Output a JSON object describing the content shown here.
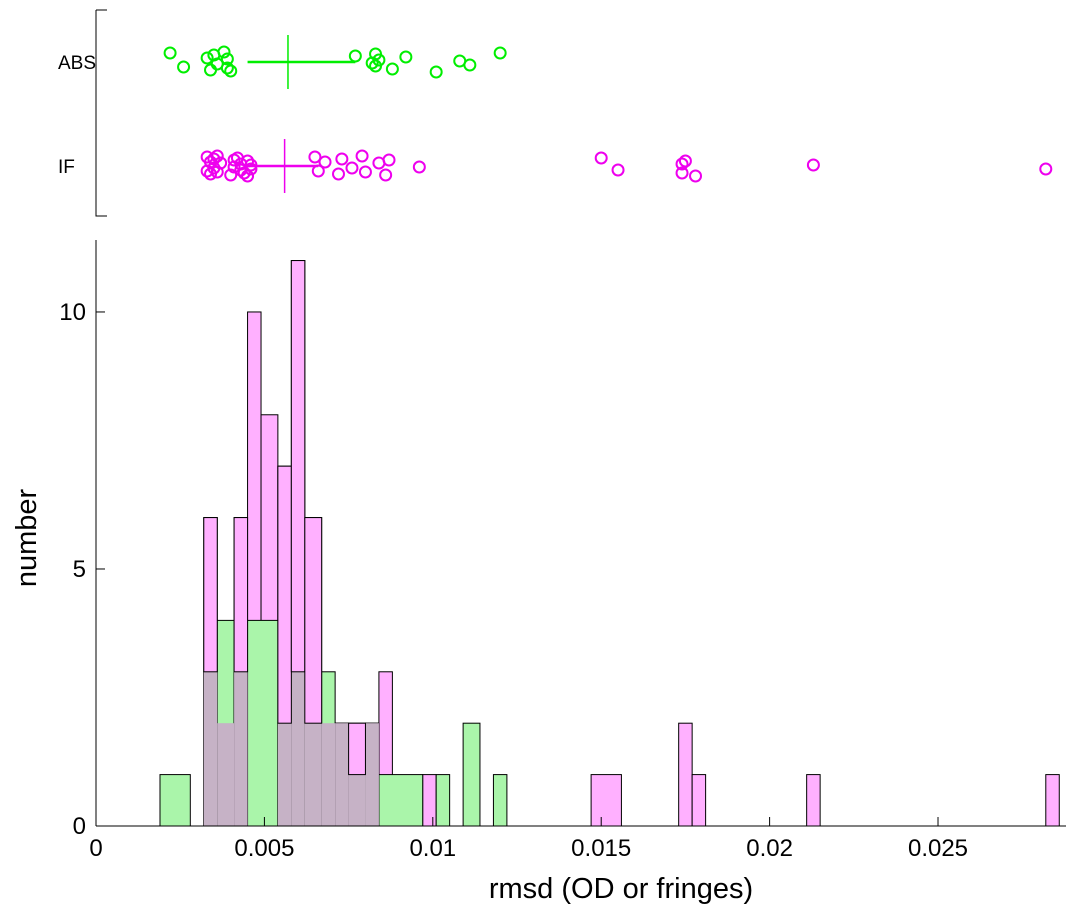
{
  "chart_data": [
    {
      "type": "scatter",
      "title": "",
      "categories": [
        "ABS",
        "IF"
      ],
      "xlim": [
        0,
        0.0288
      ],
      "series": [
        {
          "name": "ABS",
          "color": "#00ee00",
          "marker": "open-circle",
          "mean": 0.0057,
          "summary_range": [
            0.0045,
            0.0077
          ],
          "values": [
            0.0022,
            0.0026,
            0.0033,
            0.0034,
            0.0035,
            0.0036,
            0.0038,
            0.0039,
            0.0039,
            0.004,
            0.0077,
            0.0082,
            0.0083,
            0.0083,
            0.0084,
            0.0088,
            0.0092,
            0.0101,
            0.0108,
            0.0111,
            0.012
          ]
        },
        {
          "name": "IF",
          "color": "#ee00ee",
          "marker": "open-circle",
          "mean": 0.0056,
          "summary_range": [
            0.0045,
            0.0066
          ],
          "values": [
            0.0033,
            0.0033,
            0.0034,
            0.0034,
            0.0035,
            0.0035,
            0.0036,
            0.0036,
            0.0037,
            0.004,
            0.0041,
            0.0041,
            0.0042,
            0.0043,
            0.0043,
            0.0044,
            0.0045,
            0.0045,
            0.0046,
            0.0046,
            0.0065,
            0.0066,
            0.0068,
            0.0072,
            0.0073,
            0.0076,
            0.0079,
            0.008,
            0.0084,
            0.0086,
            0.0087,
            0.0096,
            0.015,
            0.0155,
            0.0174,
            0.0174,
            0.0175,
            0.0178,
            0.0213,
            0.0282
          ]
        }
      ]
    },
    {
      "type": "histogram",
      "title": "",
      "xlabel": "rmsd (OD or fringes)",
      "ylabel": "number",
      "xlim": [
        0,
        0.0288
      ],
      "ylim": [
        0,
        11.4
      ],
      "xticks": [
        "0",
        "0.005",
        "0.01",
        "0.015",
        "0.02",
        "0.025"
      ],
      "yticks": [
        "0",
        "5",
        "10"
      ],
      "series": [
        {
          "name": "ABS",
          "color": "#aaf5aa",
          "bins": [
            {
              "x0": 0.0019,
              "x1": 0.0028,
              "count": 1
            },
            {
              "x0": 0.0032,
              "x1": 0.0036,
              "count": 3
            },
            {
              "x0": 0.0036,
              "x1": 0.0041,
              "count": 4
            },
            {
              "x0": 0.0041,
              "x1": 0.0045,
              "count": 3
            },
            {
              "x0": 0.0045,
              "x1": 0.0054,
              "count": 4
            },
            {
              "x0": 0.0054,
              "x1": 0.0058,
              "count": 2
            },
            {
              "x0": 0.0058,
              "x1": 0.0062,
              "count": 3
            },
            {
              "x0": 0.0062,
              "x1": 0.0067,
              "count": 2
            },
            {
              "x0": 0.0067,
              "x1": 0.0071,
              "count": 3
            },
            {
              "x0": 0.0071,
              "x1": 0.0075,
              "count": 2
            },
            {
              "x0": 0.0075,
              "x1": 0.008,
              "count": 1
            },
            {
              "x0": 0.008,
              "x1": 0.0084,
              "count": 2
            },
            {
              "x0": 0.0084,
              "x1": 0.0097,
              "count": 1
            },
            {
              "x0": 0.0097,
              "x1": 0.0101,
              "count": 0
            },
            {
              "x0": 0.0101,
              "x1": 0.0105,
              "count": 1
            },
            {
              "x0": 0.0109,
              "x1": 0.0114,
              "count": 2
            },
            {
              "x0": 0.0118,
              "x1": 0.0122,
              "count": 1
            }
          ]
        },
        {
          "name": "IF",
          "color": "#ffb0ff",
          "bins": [
            {
              "x0": 0.0032,
              "x1": 0.0036,
              "count": 6
            },
            {
              "x0": 0.0036,
              "x1": 0.0041,
              "count": 2
            },
            {
              "x0": 0.0041,
              "x1": 0.0045,
              "count": 6
            },
            {
              "x0": 0.0045,
              "x1": 0.0049,
              "count": 10
            },
            {
              "x0": 0.0049,
              "x1": 0.0054,
              "count": 8
            },
            {
              "x0": 0.0054,
              "x1": 0.0058,
              "count": 7
            },
            {
              "x0": 0.0058,
              "x1": 0.0062,
              "count": 11
            },
            {
              "x0": 0.0062,
              "x1": 0.0067,
              "count": 6
            },
            {
              "x0": 0.0067,
              "x1": 0.0071,
              "count": 2
            },
            {
              "x0": 0.0071,
              "x1": 0.0075,
              "count": 2
            },
            {
              "x0": 0.0075,
              "x1": 0.008,
              "count": 2
            },
            {
              "x0": 0.008,
              "x1": 0.0084,
              "count": 2
            },
            {
              "x0": 0.0084,
              "x1": 0.0088,
              "count": 3
            },
            {
              "x0": 0.0097,
              "x1": 0.0101,
              "count": 1
            },
            {
              "x0": 0.0147,
              "x1": 0.0156,
              "count": 1
            },
            {
              "x0": 0.0173,
              "x1": 0.0177,
              "count": 2
            },
            {
              "x0": 0.0177,
              "x1": 0.0181,
              "count": 1
            },
            {
              "x0": 0.0211,
              "x1": 0.0215,
              "count": 1
            },
            {
              "x0": 0.0282,
              "x1": 0.0286,
              "count": 1
            }
          ]
        }
      ],
      "overlap_color": "#c6b2c6"
    }
  ]
}
